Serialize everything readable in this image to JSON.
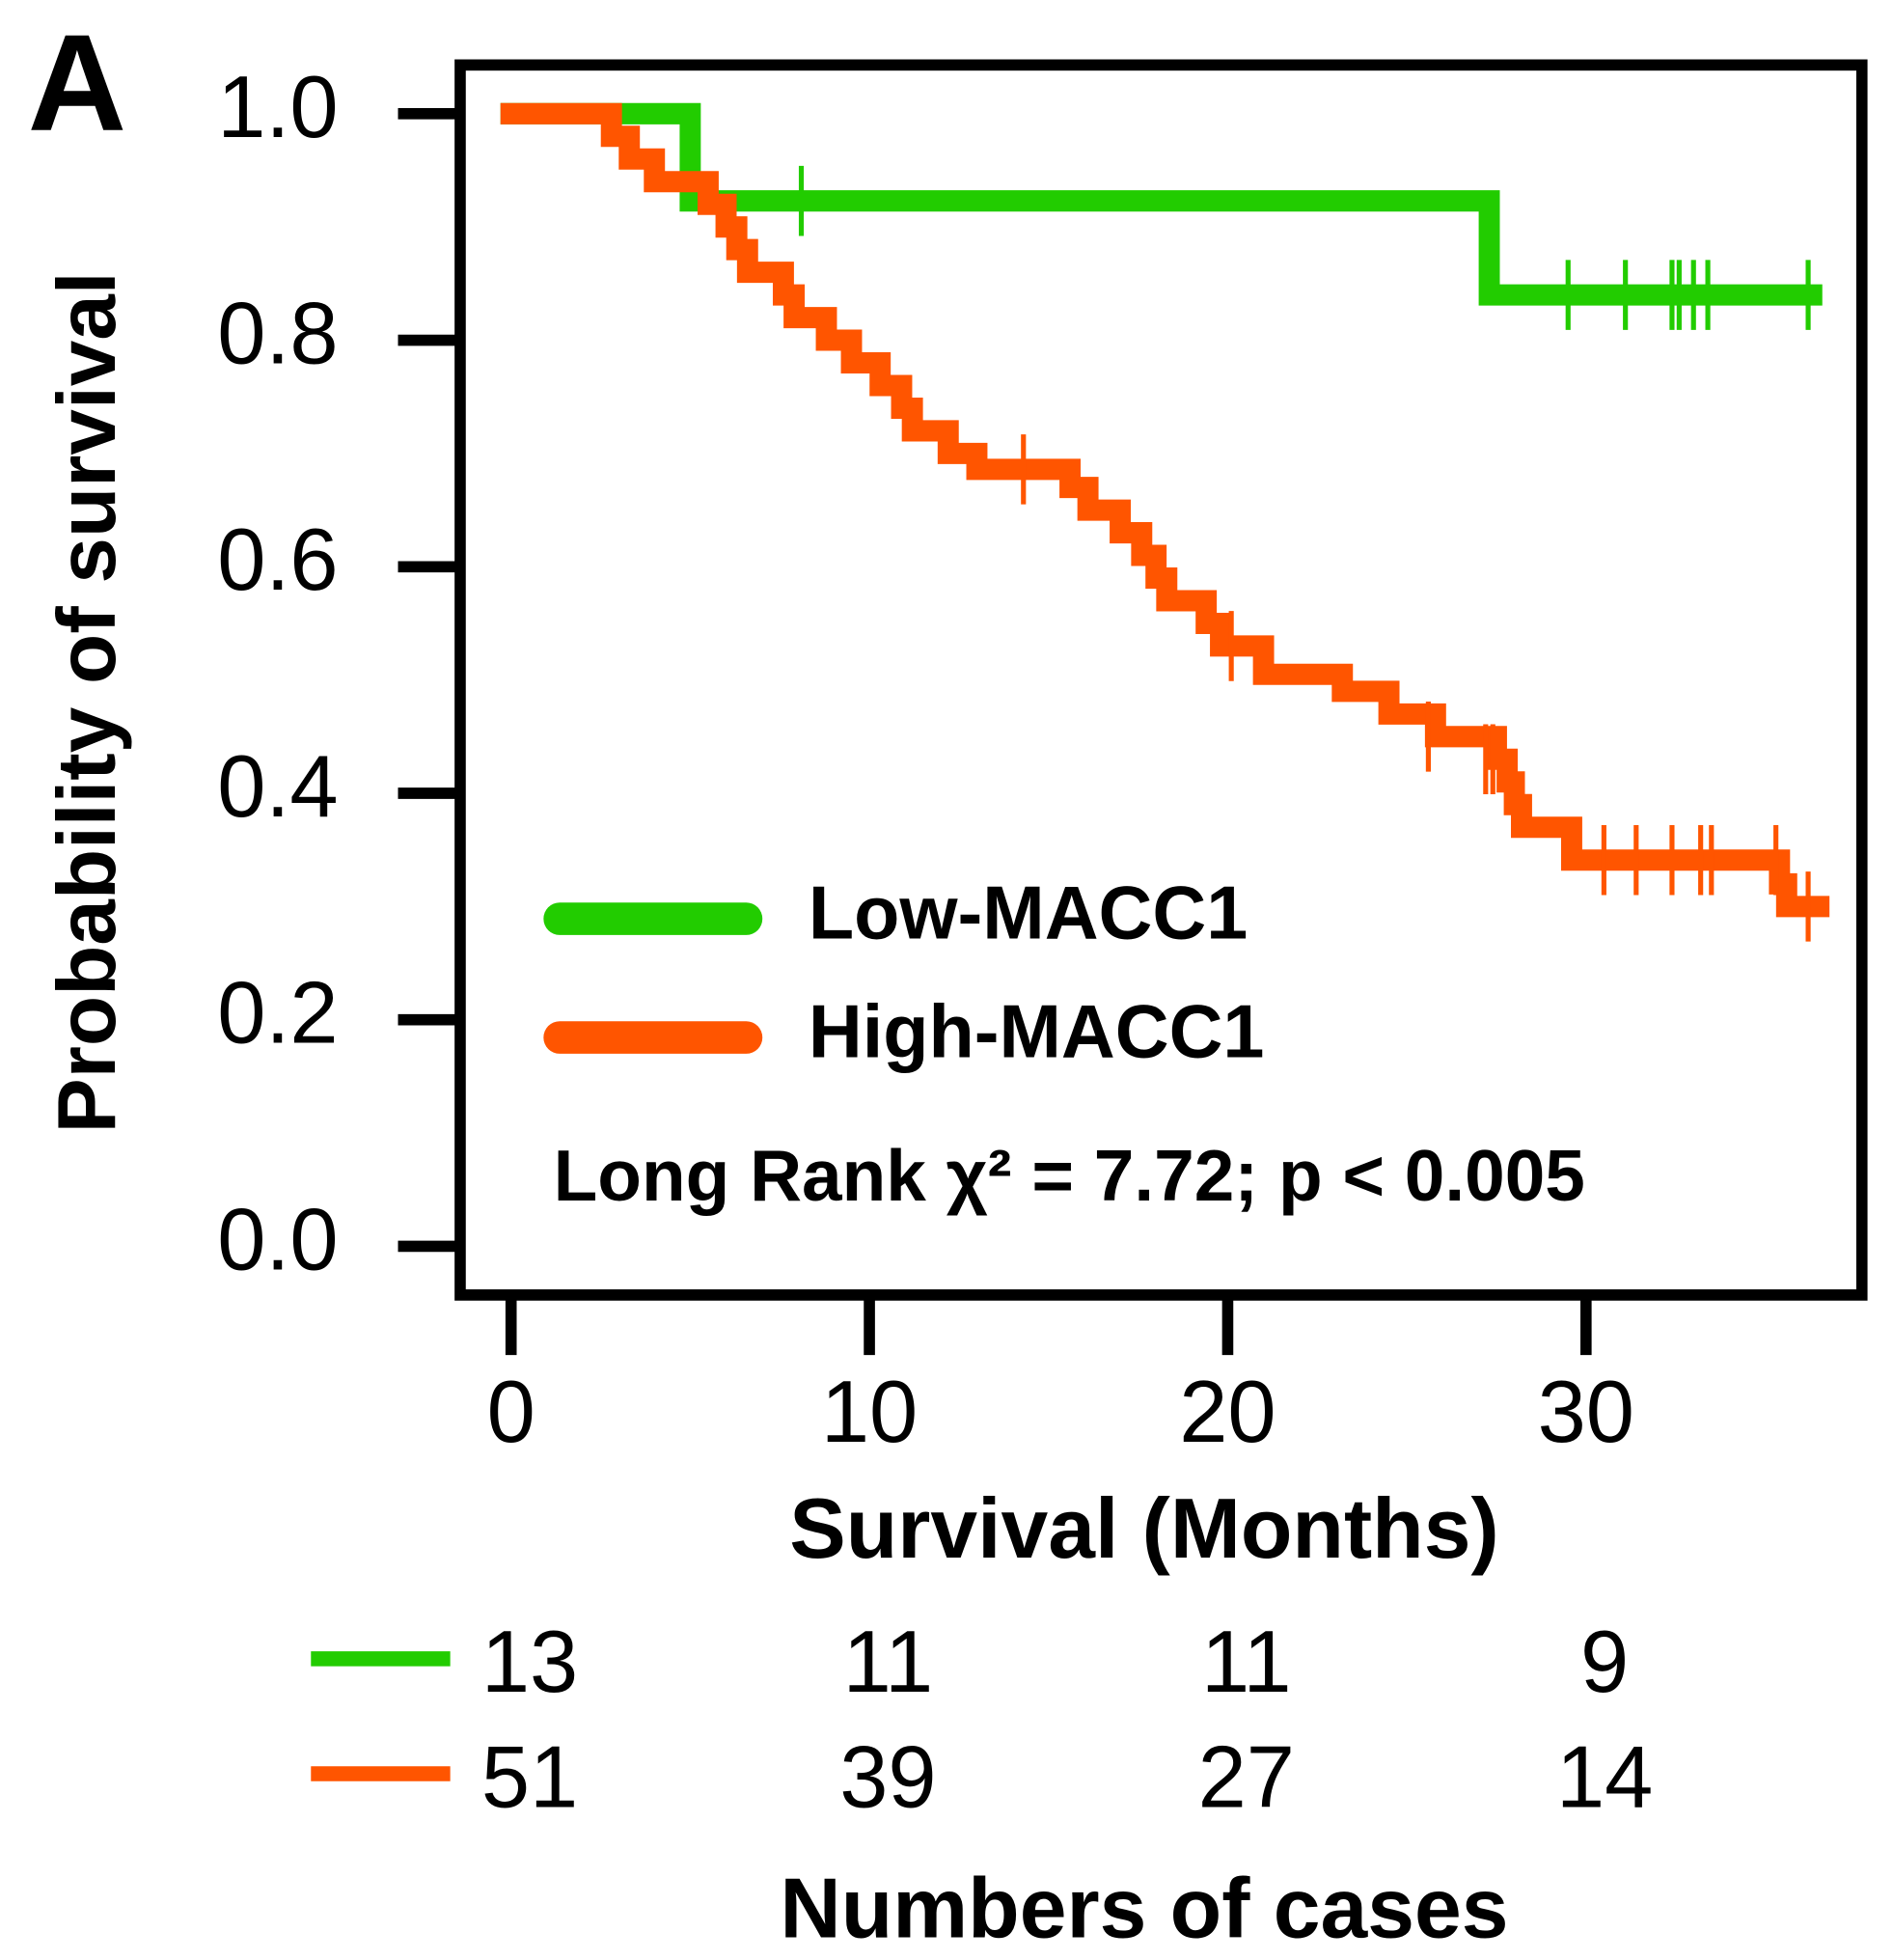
{
  "chart_data": {
    "type": "step",
    "panel_label": "A",
    "x_label": "Survival (Months)",
    "y_label": "Probability of survival",
    "annotation": "Long Rank  χ² = 7.72; p < 0.005",
    "xlim": [
      -1.42,
      37.7
    ],
    "ylim": [
      -0.043,
      1.043
    ],
    "xticks": [
      0,
      10,
      20,
      30
    ],
    "yticks": [
      {
        "value": 0,
        "label": "0.0"
      },
      0.2,
      0.4,
      0.6,
      0.8,
      {
        "value": 1,
        "label": "1.0"
      }
    ],
    "legend": "lower-left",
    "series": [
      {
        "name": "Low-MACC1",
        "color": "#22cc00",
        "x": [
          0,
          5.0,
          27.3,
          36.3
        ],
        "y": [
          1.0,
          0.923,
          0.84,
          0.84
        ],
        "censor_x": [
          8.1,
          29.5,
          31.1,
          32.4,
          32.6,
          33.0,
          33.4,
          36.2
        ],
        "censor_y": [
          0.923,
          0.84,
          0.84,
          0.84,
          0.84,
          0.84,
          0.84,
          0.84
        ],
        "at_risk": [
          13,
          11,
          11,
          9
        ]
      },
      {
        "name": "High-MACC1",
        "color": "#ff5500",
        "x": [
          0,
          2.8,
          3.3,
          4.0,
          5.5,
          6.0,
          6.3,
          6.6,
          7.6,
          7.9,
          8.8,
          9.5,
          10.3,
          10.9,
          11.2,
          12.2,
          13.0,
          15.6,
          16.1,
          17.0,
          17.6,
          18.0,
          18.3,
          19.4,
          19.8,
          21.0,
          23.2,
          24.5,
          25.8,
          27.5,
          27.8,
          28.0,
          28.2,
          29.6,
          35.4,
          35.6,
          36.5
        ],
        "y": [
          1.0,
          0.98,
          0.96,
          0.94,
          0.92,
          0.9,
          0.88,
          0.86,
          0.84,
          0.82,
          0.8,
          0.78,
          0.76,
          0.74,
          0.72,
          0.7,
          0.686,
          0.67,
          0.65,
          0.63,
          0.61,
          0.59,
          0.57,
          0.55,
          0.53,
          0.505,
          0.49,
          0.47,
          0.45,
          0.43,
          0.41,
          0.39,
          0.37,
          0.341,
          0.32,
          0.3,
          0.3
        ],
        "censor_x": [
          14.3,
          20.1,
          25.6,
          27.2,
          27.4,
          30.5,
          31.4,
          32.4,
          33.2,
          33.5,
          35.3,
          36.2
        ],
        "censor_y": [
          0.686,
          0.53,
          0.45,
          0.43,
          0.43,
          0.341,
          0.341,
          0.341,
          0.341,
          0.341,
          0.341,
          0.3
        ],
        "at_risk": [
          51,
          39,
          27,
          14
        ]
      }
    ],
    "risk_table_title": "Numbers of cases"
  }
}
